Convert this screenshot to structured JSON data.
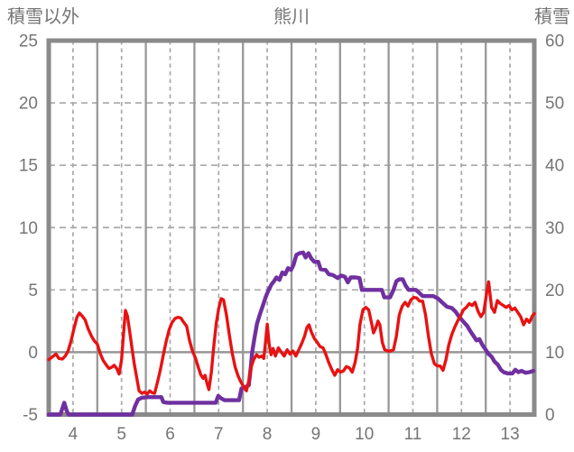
{
  "header": {
    "left_axis_title": "積雪以外",
    "chart_title": "熊川",
    "right_axis_title": "積雪"
  },
  "colors": {
    "background": "#ffffff",
    "text": "#757575",
    "plot_border": "#8a8a8a",
    "gridline_dashed": "#a8a8a8",
    "gridline_solid": "#989898",
    "zero_line": "#969696",
    "red_series": "#e81212",
    "purple_series": "#7030a0"
  },
  "chart_data": {
    "type": "line",
    "title": "熊川",
    "legend_position": "none",
    "grid": "on",
    "x_axis": {
      "min": 3.5,
      "max": 13.5,
      "ticks": [
        4,
        5,
        6,
        7,
        8,
        9,
        10,
        11,
        12,
        13
      ]
    },
    "left_axis": {
      "label": "積雪以外",
      "min": -5,
      "max": 25,
      "ticks": [
        25,
        20,
        15,
        10,
        5,
        0,
        -5
      ],
      "solid_gridline_at": 0,
      "dashed_gridlines_at": [
        20,
        15,
        10,
        5
      ]
    },
    "right_axis": {
      "label": "積雪",
      "min": 0,
      "max": 60,
      "ticks": [
        60,
        50,
        40,
        30,
        20,
        10,
        0
      ]
    },
    "series": [
      {
        "name": "積雪",
        "axis": "right",
        "color": "#7030a0",
        "points": [
          [
            3.5,
            0
          ],
          [
            3.74,
            0
          ],
          [
            3.79,
            1.2
          ],
          [
            3.82,
            1.9
          ],
          [
            3.87,
            0.6
          ],
          [
            3.91,
            0
          ],
          [
            4.2,
            0
          ],
          [
            4.6,
            0
          ],
          [
            5.0,
            0
          ],
          [
            5.22,
            0
          ],
          [
            5.28,
            1.4
          ],
          [
            5.34,
            2.4
          ],
          [
            5.42,
            2.7
          ],
          [
            5.55,
            2.8
          ],
          [
            5.7,
            2.8
          ],
          [
            5.82,
            2.8
          ],
          [
            5.86,
            2.0
          ],
          [
            5.95,
            1.9
          ],
          [
            6.3,
            1.9
          ],
          [
            6.6,
            1.9
          ],
          [
            6.94,
            1.9
          ],
          [
            6.99,
            3.0
          ],
          [
            7.05,
            2.6
          ],
          [
            7.12,
            2.3
          ],
          [
            7.3,
            2.3
          ],
          [
            7.42,
            2.3
          ],
          [
            7.47,
            4.2
          ],
          [
            7.55,
            4.4
          ],
          [
            7.62,
            4.7
          ],
          [
            7.66,
            7.5
          ],
          [
            7.69,
            10.0
          ],
          [
            7.74,
            12.4
          ],
          [
            7.79,
            14.6
          ],
          [
            7.85,
            16.1
          ],
          [
            7.91,
            17.5
          ],
          [
            7.97,
            18.9
          ],
          [
            8.03,
            20.0
          ],
          [
            8.09,
            20.9
          ],
          [
            8.14,
            21.4
          ],
          [
            8.19,
            22.0
          ],
          [
            8.25,
            21.6
          ],
          [
            8.31,
            22.8
          ],
          [
            8.37,
            22.5
          ],
          [
            8.43,
            23.5
          ],
          [
            8.49,
            23.2
          ],
          [
            8.54,
            24.0
          ],
          [
            8.6,
            25.6
          ],
          [
            8.67,
            25.9
          ],
          [
            8.74,
            26.0
          ],
          [
            8.79,
            25.2
          ],
          [
            8.85,
            25.9
          ],
          [
            8.91,
            25.0
          ],
          [
            8.97,
            24.5
          ],
          [
            9.05,
            24.5
          ],
          [
            9.1,
            23.3
          ],
          [
            9.2,
            23.2
          ],
          [
            9.27,
            22.5
          ],
          [
            9.35,
            22.4
          ],
          [
            9.45,
            21.9
          ],
          [
            9.52,
            22.3
          ],
          [
            9.6,
            22.1
          ],
          [
            9.66,
            21.2
          ],
          [
            9.72,
            22.0
          ],
          [
            9.82,
            22.0
          ],
          [
            9.9,
            21.9
          ],
          [
            9.95,
            20.0
          ],
          [
            10.1,
            20.0
          ],
          [
            10.25,
            20.0
          ],
          [
            10.36,
            20.0
          ],
          [
            10.41,
            18.8
          ],
          [
            10.53,
            18.8
          ],
          [
            10.6,
            20.0
          ],
          [
            10.66,
            21.4
          ],
          [
            10.72,
            21.7
          ],
          [
            10.79,
            21.7
          ],
          [
            10.85,
            20.7
          ],
          [
            10.91,
            20.0
          ],
          [
            11.0,
            20.0
          ],
          [
            11.06,
            20.0
          ],
          [
            11.12,
            19.6
          ],
          [
            11.2,
            19.0
          ],
          [
            11.3,
            19.0
          ],
          [
            11.42,
            19.0
          ],
          [
            11.52,
            18.6
          ],
          [
            11.6,
            18.0
          ],
          [
            11.7,
            17.3
          ],
          [
            11.8,
            17.1
          ],
          [
            11.88,
            16.5
          ],
          [
            11.95,
            15.7
          ],
          [
            12.03,
            15.0
          ],
          [
            12.12,
            14.2
          ],
          [
            12.18,
            13.4
          ],
          [
            12.25,
            12.6
          ],
          [
            12.31,
            11.9
          ],
          [
            12.37,
            12.1
          ],
          [
            12.43,
            11.2
          ],
          [
            12.5,
            10.4
          ],
          [
            12.56,
            9.7
          ],
          [
            12.62,
            9.3
          ],
          [
            12.68,
            8.5
          ],
          [
            12.75,
            8.0
          ],
          [
            12.81,
            7.2
          ],
          [
            12.87,
            6.8
          ],
          [
            12.95,
            6.6
          ],
          [
            13.05,
            6.6
          ],
          [
            13.11,
            7.2
          ],
          [
            13.17,
            6.8
          ],
          [
            13.24,
            7.0
          ],
          [
            13.32,
            6.7
          ],
          [
            13.4,
            6.8
          ],
          [
            13.48,
            7.0
          ]
        ]
      },
      {
        "name": "積雪以外",
        "axis": "left",
        "color": "#e81212",
        "points": [
          [
            3.5,
            -0.6
          ],
          [
            3.58,
            -0.35
          ],
          [
            3.65,
            -0.15
          ],
          [
            3.71,
            -0.5
          ],
          [
            3.78,
            -0.55
          ],
          [
            3.84,
            -0.3
          ],
          [
            3.9,
            0.1
          ],
          [
            3.96,
            0.9
          ],
          [
            4.02,
            1.9
          ],
          [
            4.08,
            2.8
          ],
          [
            4.13,
            3.15
          ],
          [
            4.19,
            2.9
          ],
          [
            4.25,
            2.6
          ],
          [
            4.31,
            1.9
          ],
          [
            4.38,
            1.3
          ],
          [
            4.44,
            0.9
          ],
          [
            4.5,
            0.65
          ],
          [
            4.56,
            -0.1
          ],
          [
            4.62,
            -0.65
          ],
          [
            4.68,
            -1.0
          ],
          [
            4.74,
            -1.3
          ],
          [
            4.8,
            -1.2
          ],
          [
            4.85,
            -1.05
          ],
          [
            4.9,
            -1.3
          ],
          [
            4.95,
            -1.75
          ],
          [
            5.0,
            -0.6
          ],
          [
            5.04,
            1.5
          ],
          [
            5.08,
            3.35
          ],
          [
            5.12,
            2.9
          ],
          [
            5.17,
            1.6
          ],
          [
            5.22,
            0.2
          ],
          [
            5.26,
            -0.9
          ],
          [
            5.31,
            -2.0
          ],
          [
            5.36,
            -3.1
          ],
          [
            5.42,
            -3.3
          ],
          [
            5.47,
            -3.2
          ],
          [
            5.53,
            -3.35
          ],
          [
            5.58,
            -3.1
          ],
          [
            5.63,
            -3.25
          ],
          [
            5.68,
            -3.3
          ],
          [
            5.74,
            -2.4
          ],
          [
            5.8,
            -1.4
          ],
          [
            5.86,
            -0.2
          ],
          [
            5.92,
            0.9
          ],
          [
            5.98,
            1.8
          ],
          [
            6.04,
            2.4
          ],
          [
            6.1,
            2.7
          ],
          [
            6.16,
            2.8
          ],
          [
            6.22,
            2.75
          ],
          [
            6.28,
            2.4
          ],
          [
            6.34,
            2.1
          ],
          [
            6.4,
            0.95
          ],
          [
            6.46,
            0.1
          ],
          [
            6.52,
            -0.45
          ],
          [
            6.58,
            -1.2
          ],
          [
            6.63,
            -1.8
          ],
          [
            6.68,
            -2.1
          ],
          [
            6.72,
            -1.85
          ],
          [
            6.76,
            -2.5
          ],
          [
            6.8,
            -3.0
          ],
          [
            6.85,
            -1.6
          ],
          [
            6.9,
            0.5
          ],
          [
            6.95,
            2.3
          ],
          [
            7.0,
            3.5
          ],
          [
            7.05,
            4.3
          ],
          [
            7.1,
            4.2
          ],
          [
            7.16,
            3.0
          ],
          [
            7.22,
            1.4
          ],
          [
            7.28,
            -0.1
          ],
          [
            7.34,
            -1.2
          ],
          [
            7.4,
            -1.9
          ],
          [
            7.46,
            -2.4
          ],
          [
            7.52,
            -2.8
          ],
          [
            7.57,
            -3.1
          ],
          [
            7.62,
            -2.3
          ],
          [
            7.67,
            -1.2
          ],
          [
            7.72,
            -0.6
          ],
          [
            7.78,
            -0.2
          ],
          [
            7.83,
            -0.4
          ],
          [
            7.89,
            -0.3
          ],
          [
            7.93,
            -0.5
          ],
          [
            7.97,
            1.0
          ],
          [
            8.0,
            2.25
          ],
          [
            8.04,
            0.6
          ],
          [
            8.08,
            -0.2
          ],
          [
            8.12,
            0.3
          ],
          [
            8.17,
            -0.3
          ],
          [
            8.23,
            0.35
          ],
          [
            8.29,
            0.0
          ],
          [
            8.35,
            -0.3
          ],
          [
            8.41,
            0.2
          ],
          [
            8.47,
            -0.15
          ],
          [
            8.53,
            0.1
          ],
          [
            8.59,
            -0.3
          ],
          [
            8.65,
            0.2
          ],
          [
            8.71,
            0.7
          ],
          [
            8.77,
            1.3
          ],
          [
            8.82,
            2.0
          ],
          [
            8.86,
            2.2
          ],
          [
            8.91,
            1.6
          ],
          [
            8.97,
            1.1
          ],
          [
            9.03,
            0.8
          ],
          [
            9.09,
            0.45
          ],
          [
            9.15,
            0.35
          ],
          [
            9.21,
            -0.2
          ],
          [
            9.27,
            -0.85
          ],
          [
            9.33,
            -1.4
          ],
          [
            9.39,
            -1.85
          ],
          [
            9.45,
            -1.4
          ],
          [
            9.51,
            -1.6
          ],
          [
            9.57,
            -1.5
          ],
          [
            9.63,
            -1.15
          ],
          [
            9.69,
            -1.25
          ],
          [
            9.75,
            -1.6
          ],
          [
            9.81,
            -0.8
          ],
          [
            9.86,
            0.3
          ],
          [
            9.91,
            2.25
          ],
          [
            9.97,
            3.4
          ],
          [
            10.03,
            3.6
          ],
          [
            10.09,
            3.4
          ],
          [
            10.15,
            2.3
          ],
          [
            10.19,
            1.55
          ],
          [
            10.24,
            2.0
          ],
          [
            10.28,
            2.5
          ],
          [
            10.32,
            2.2
          ],
          [
            10.37,
            0.8
          ],
          [
            10.42,
            0.2
          ],
          [
            10.48,
            0.1
          ],
          [
            10.54,
            0.1
          ],
          [
            10.6,
            0.2
          ],
          [
            10.66,
            1.3
          ],
          [
            10.72,
            3.0
          ],
          [
            10.78,
            3.7
          ],
          [
            10.84,
            4.0
          ],
          [
            10.9,
            3.7
          ],
          [
            10.96,
            4.2
          ],
          [
            11.02,
            4.4
          ],
          [
            11.08,
            4.35
          ],
          [
            11.14,
            4.1
          ],
          [
            11.2,
            4.1
          ],
          [
            11.26,
            3.0
          ],
          [
            11.32,
            1.3
          ],
          [
            11.38,
            -0.1
          ],
          [
            11.44,
            -0.9
          ],
          [
            11.5,
            -1.1
          ],
          [
            11.56,
            -1.1
          ],
          [
            11.62,
            -1.45
          ],
          [
            11.68,
            -0.6
          ],
          [
            11.74,
            0.6
          ],
          [
            11.8,
            1.4
          ],
          [
            11.86,
            2.0
          ],
          [
            11.92,
            2.5
          ],
          [
            11.98,
            2.9
          ],
          [
            12.04,
            3.4
          ],
          [
            12.1,
            3.6
          ],
          [
            12.16,
            3.9
          ],
          [
            12.22,
            3.75
          ],
          [
            12.28,
            4.0
          ],
          [
            12.34,
            3.3
          ],
          [
            12.4,
            2.85
          ],
          [
            12.46,
            3.2
          ],
          [
            12.52,
            4.8
          ],
          [
            12.56,
            5.65
          ],
          [
            12.62,
            3.6
          ],
          [
            12.68,
            3.2
          ],
          [
            12.74,
            4.15
          ],
          [
            12.8,
            3.9
          ],
          [
            12.86,
            3.75
          ],
          [
            12.92,
            3.6
          ],
          [
            12.98,
            3.75
          ],
          [
            13.04,
            3.4
          ],
          [
            13.1,
            3.55
          ],
          [
            13.16,
            3.2
          ],
          [
            13.22,
            2.85
          ],
          [
            13.28,
            2.2
          ],
          [
            13.34,
            2.65
          ],
          [
            13.4,
            2.4
          ],
          [
            13.46,
            2.9
          ],
          [
            13.5,
            3.1
          ]
        ]
      }
    ]
  }
}
